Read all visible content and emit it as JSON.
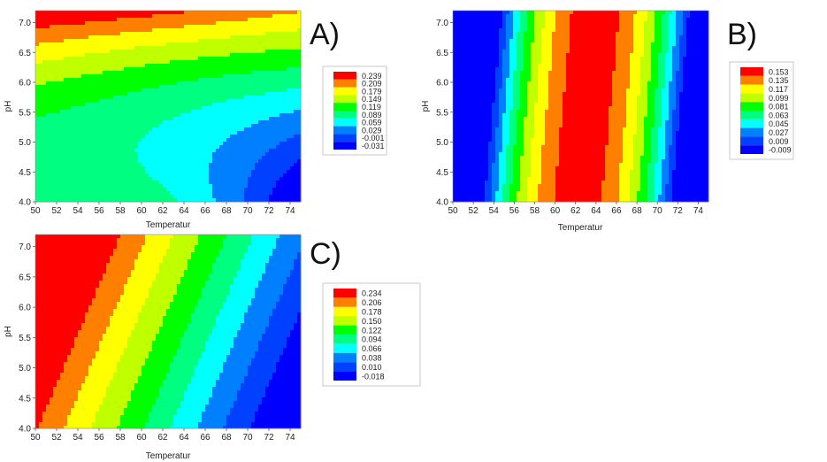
{
  "chart_data": [
    {
      "type": "contour",
      "panel_label": "A)",
      "xlabel": "Temperatur",
      "ylabel": "pH",
      "xlim": [
        50,
        75
      ],
      "ylim": [
        4.0,
        7.2
      ],
      "x_ticks": [
        "50",
        "52",
        "54",
        "56",
        "58",
        "60",
        "62",
        "64",
        "66",
        "68",
        "70",
        "72",
        "74"
      ],
      "y_ticks": [
        "4.0",
        "4.5",
        "5.0",
        "5.5",
        "6.0",
        "6.5",
        "7.0"
      ],
      "levels": [
        "0.239",
        "0.209",
        "0.179",
        "0.149",
        "0.119",
        "0.089",
        "0.059",
        "0.029",
        "-0.001",
        "-0.031"
      ],
      "colors": [
        "#ff0000",
        "#ff8000",
        "#ffff00",
        "#c0ff00",
        "#00ff00",
        "#00ff80",
        "#00ffff",
        "#0080ff",
        "#0040ff",
        "#0000ff"
      ]
    },
    {
      "type": "contour",
      "panel_label": "B)",
      "xlabel": "Temperatur",
      "ylabel": "pH",
      "xlim": [
        50,
        75
      ],
      "ylim": [
        4.0,
        7.2
      ],
      "x_ticks": [
        "50",
        "52",
        "54",
        "56",
        "58",
        "60",
        "62",
        "64",
        "66",
        "68",
        "70",
        "72",
        "74"
      ],
      "y_ticks": [
        "4.0",
        "4.5",
        "5.0",
        "5.5",
        "6.0",
        "6.5",
        "7.0"
      ],
      "levels": [
        "0.153",
        "0.135",
        "0.117",
        "0.099",
        "0.081",
        "0.063",
        "0.045",
        "0.027",
        "0.009",
        "-0.009"
      ],
      "colors": [
        "#ff0000",
        "#ff8000",
        "#ffff00",
        "#c0ff00",
        "#00ff00",
        "#00ff80",
        "#00ffff",
        "#0080ff",
        "#0040ff",
        "#0000ff"
      ]
    },
    {
      "type": "contour",
      "panel_label": "C)",
      "xlabel": "Temperatur",
      "ylabel": "pH",
      "xlim": [
        50,
        75
      ],
      "ylim": [
        4.0,
        7.2
      ],
      "x_ticks": [
        "50",
        "52",
        "54",
        "56",
        "58",
        "60",
        "62",
        "64",
        "66",
        "68",
        "70",
        "72",
        "74"
      ],
      "y_ticks": [
        "4.0",
        "4.5",
        "5.0",
        "5.5",
        "6.0",
        "6.5",
        "7.0"
      ],
      "levels": [
        "0.234",
        "0.206",
        "0.178",
        "0.150",
        "0.122",
        "0.094",
        "0.066",
        "0.038",
        "0.010",
        "-0.018"
      ],
      "colors": [
        "#ff0000",
        "#ff8000",
        "#ffff00",
        "#c0ff00",
        "#00ff00",
        "#00ff80",
        "#00ffff",
        "#0080ff",
        "#0040ff",
        "#0000ff"
      ]
    }
  ]
}
